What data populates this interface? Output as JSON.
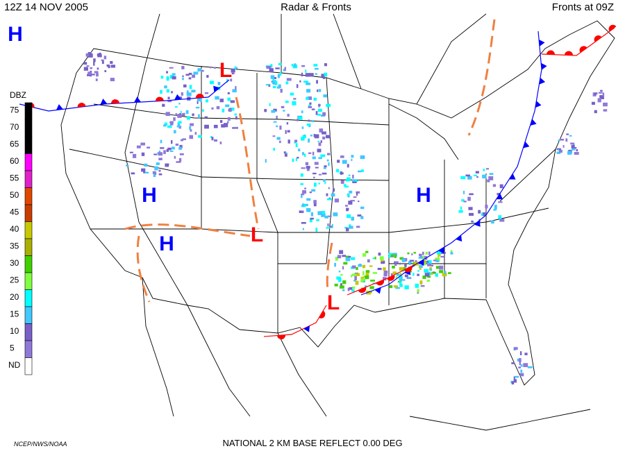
{
  "header": {
    "left": "12Z  14 NOV  2005",
    "center": "Radar & Fronts",
    "right": "Fronts at 09Z"
  },
  "legend": {
    "title": "DBZ",
    "levels": [
      {
        "label": "75",
        "color": "#000000"
      },
      {
        "label": "70",
        "color": "#000000"
      },
      {
        "label": "65",
        "color": "#000000"
      },
      {
        "label": "60",
        "color": "#ff00ff"
      },
      {
        "label": "55",
        "color": "#e020c8"
      },
      {
        "label": "50",
        "color": "#e04800"
      },
      {
        "label": "45",
        "color": "#c83c00"
      },
      {
        "label": "40",
        "color": "#c8c800"
      },
      {
        "label": "35",
        "color": "#a8b000"
      },
      {
        "label": "30",
        "color": "#40d000"
      },
      {
        "label": "25",
        "color": "#80ff40"
      },
      {
        "label": "20",
        "color": "#00ffff"
      },
      {
        "label": "15",
        "color": "#40c8ff"
      },
      {
        "label": "10",
        "color": "#7860c8"
      },
      {
        "label": "5",
        "color": "#9078d8"
      },
      {
        "label": "ND",
        "color": "#ffffff"
      }
    ]
  },
  "pressure_centers": [
    {
      "label": "H",
      "color": "#0000ff"
    },
    {
      "label": "L",
      "color": "#ff0000"
    },
    {
      "label": "H",
      "color": "#0000ff"
    },
    {
      "label": "H",
      "color": "#0000ff"
    },
    {
      "label": "L",
      "color": "#ff0000"
    },
    {
      "label": "L",
      "color": "#ff0000"
    },
    {
      "label": "H",
      "color": "#0000ff"
    }
  ],
  "footer": {
    "left": "NCEP/NWS/NOAA",
    "center": "NATIONAL 2 KM BASE REFLECT 0.00 DEG"
  }
}
